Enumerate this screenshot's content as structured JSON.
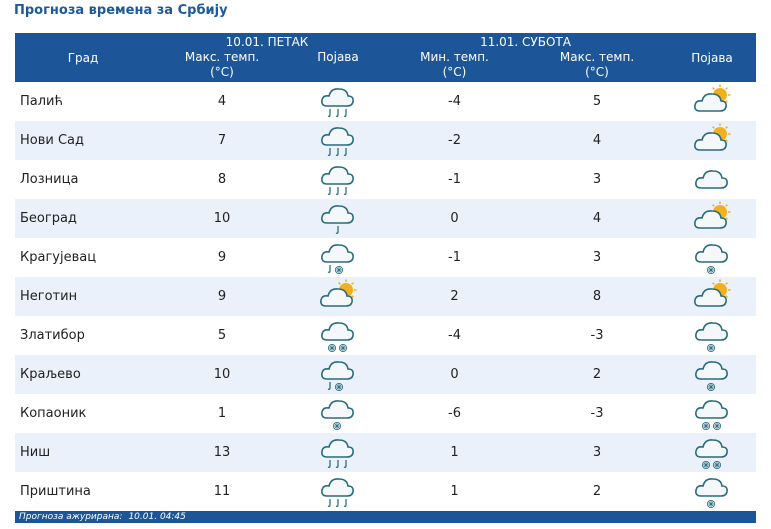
{
  "page": {
    "title": "Прогноза времена за Србију"
  },
  "table": {
    "city_header": "Град",
    "day1": {
      "date": "10.01. ПЕТАК",
      "max_label": "Макс. темп.",
      "unit": "(°C)",
      "phen_label": "Појава"
    },
    "day2": {
      "date": "11.01. СУБОТА",
      "min_label": "Мин. темп.",
      "max_label": "Макс. темп.",
      "unit": "(°C)",
      "phen_label": "Појава"
    },
    "rows": [
      {
        "city": "Палић",
        "max1": "4",
        "icon1": "cloud-rain-icon",
        "min2": "-4",
        "max2": "5",
        "icon2": "cloud-sun-icon"
      },
      {
        "city": "Нови Сад",
        "max1": "7",
        "icon1": "cloud-rain-icon",
        "min2": "-2",
        "max2": "4",
        "icon2": "cloud-sun-icon"
      },
      {
        "city": "Лозница",
        "max1": "8",
        "icon1": "cloud-rain-icon",
        "min2": "-1",
        "max2": "3",
        "icon2": "cloud-icon"
      },
      {
        "city": "Београд",
        "max1": "10",
        "icon1": "cloud-light-rain-icon",
        "min2": "0",
        "max2": "4",
        "icon2": "cloud-sun-icon"
      },
      {
        "city": "Крагујевац",
        "max1": "9",
        "icon1": "cloud-rain-snow-icon",
        "min2": "-1",
        "max2": "3",
        "icon2": "cloud-light-snow-icon"
      },
      {
        "city": "Неготин",
        "max1": "9",
        "icon1": "cloud-sun-icon",
        "min2": "2",
        "max2": "8",
        "icon2": "cloud-sun-icon"
      },
      {
        "city": "Златибор",
        "max1": "5",
        "icon1": "cloud-snow-icon",
        "min2": "-4",
        "max2": "-3",
        "icon2": "cloud-light-snow-icon"
      },
      {
        "city": "Краљево",
        "max1": "10",
        "icon1": "cloud-rain-snow-icon",
        "min2": "0",
        "max2": "2",
        "icon2": "cloud-light-snow-icon"
      },
      {
        "city": "Копаоник",
        "max1": "1",
        "icon1": "cloud-light-snow-icon",
        "min2": "-6",
        "max2": "-3",
        "icon2": "cloud-snow-icon"
      },
      {
        "city": "Ниш",
        "max1": "13",
        "icon1": "cloud-rain-icon",
        "min2": "1",
        "max2": "3",
        "icon2": "cloud-snow-icon"
      },
      {
        "city": "Приштина",
        "max1": "11",
        "icon1": "cloud-rain-icon",
        "min2": "1",
        "max2": "2",
        "icon2": "cloud-light-snow-icon"
      }
    ]
  },
  "footer": {
    "label": "Прогноза ажурирана:",
    "value": "10.01. 04:45"
  },
  "colors": {
    "header_bg": "#1c5698",
    "alt_row_bg": "#eaf1fa",
    "title": "#1d5a97",
    "cloud_fill": "#f4f8fb",
    "cloud_stroke": "#2a6b7c",
    "sun": "#f2b01e",
    "precip": "#2f6f80"
  }
}
